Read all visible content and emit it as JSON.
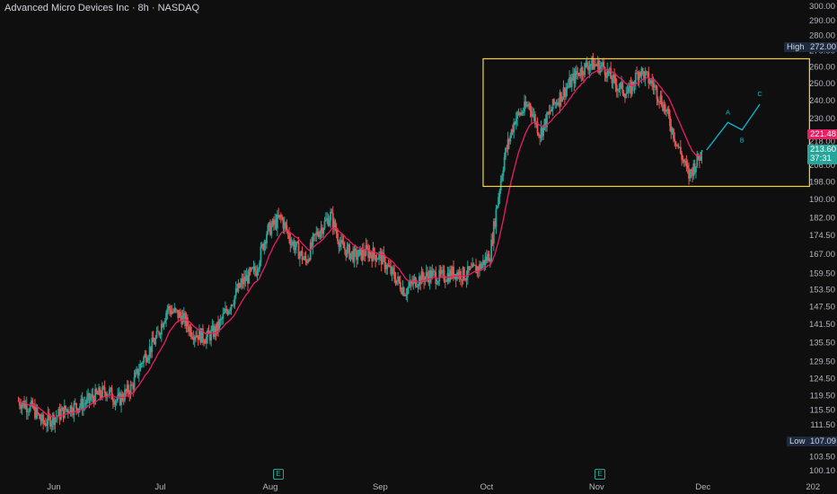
{
  "header": {
    "title": "Advanced Micro Devices Inc · 8h · NASDAQ"
  },
  "colors": {
    "up": "#26a69a",
    "down": "#ef5350",
    "ma": "#e91e63",
    "box": "#f5d142",
    "projection": "#00bcd4",
    "background": "#0f0f0f"
  },
  "axis": {
    "y_ticks": [
      "300.00",
      "290.00",
      "280.00",
      "270.00",
      "260.00",
      "250.00",
      "240.00",
      "230.00",
      "218.00",
      "206.00",
      "198.00",
      "190.00",
      "182.00",
      "174.50",
      "167.00",
      "159.50",
      "153.50",
      "147.50",
      "141.50",
      "135.50",
      "129.50",
      "124.50",
      "119.50",
      "115.50",
      "111.50",
      "107.50",
      "103.50",
      "100.10"
    ],
    "x_ticks": [
      "Jun",
      "Jul",
      "Aug",
      "Sep",
      "Oct",
      "Nov",
      "Dec",
      "202"
    ]
  },
  "price_tags": {
    "high_label": "High",
    "high_value": "272.00",
    "low_label": "Low",
    "low_value": "107.09",
    "ma_value": "221.48",
    "last_price": "213.60",
    "countdown": "37:31"
  },
  "annotations": {
    "wave_labels": [
      "A",
      "B",
      "C"
    ],
    "earnings_icon": "E"
  },
  "chart_data": {
    "type": "candlestick",
    "title": "Advanced Micro Devices Inc · 8h · NASDAQ",
    "xlabel": "",
    "ylabel": "",
    "ylim": [
      100.1,
      300
    ],
    "y_scale": "log",
    "x_ticks": [
      "Jun",
      "Jul",
      "Aug",
      "Sep",
      "Oct",
      "Nov",
      "Dec",
      "202"
    ],
    "price_path": [
      [
        "May 22",
        118
      ],
      [
        "May 26",
        116
      ],
      [
        "May 29",
        112
      ],
      [
        "Jun 2",
        114
      ],
      [
        "Jun 5",
        116
      ],
      [
        "Jun 9",
        117
      ],
      [
        "Jun 12",
        119
      ],
      [
        "Jun 16",
        121
      ],
      [
        "Jun 19",
        118
      ],
      [
        "Jun 23",
        122
      ],
      [
        "Jun 26",
        130
      ],
      [
        "Jun 30",
        137
      ],
      [
        "Jul 3",
        147
      ],
      [
        "Jul 7",
        144
      ],
      [
        "Jul 10",
        139
      ],
      [
        "Jul 14",
        137
      ],
      [
        "Jul 17",
        140
      ],
      [
        "Jul 21",
        149
      ],
      [
        "Jul 24",
        156
      ],
      [
        "Jul 28",
        161
      ],
      [
        "Jul 31",
        176
      ],
      [
        "Aug 4",
        182
      ],
      [
        "Aug 7",
        172
      ],
      [
        "Aug 11",
        164
      ],
      [
        "Aug 14",
        175
      ],
      [
        "Aug 18",
        183
      ],
      [
        "Aug 21",
        170
      ],
      [
        "Aug 25",
        166
      ],
      [
        "Aug 28",
        168
      ],
      [
        "Sep 1",
        166
      ],
      [
        "Sep 4",
        160
      ],
      [
        "Sep 8",
        153
      ],
      [
        "Sep 11",
        157
      ],
      [
        "Sep 15",
        159
      ],
      [
        "Sep 18",
        158
      ],
      [
        "Sep 22",
        160
      ],
      [
        "Sep 25",
        159
      ],
      [
        "Sep 29",
        162
      ],
      [
        "Oct 2",
        167
      ],
      [
        "Oct 6",
        210
      ],
      [
        "Oct 9",
        230
      ],
      [
        "Oct 13",
        238
      ],
      [
        "Oct 16",
        222
      ],
      [
        "Oct 20",
        238
      ],
      [
        "Oct 23",
        246
      ],
      [
        "Oct 27",
        257
      ],
      [
        "Oct 30",
        262
      ],
      [
        "Nov 3",
        260
      ],
      [
        "Nov 6",
        250
      ],
      [
        "Nov 10",
        244
      ],
      [
        "Nov 13",
        258
      ],
      [
        "Nov 17",
        249
      ],
      [
        "Nov 20",
        237
      ],
      [
        "Nov 24",
        215
      ],
      [
        "Nov 27",
        201
      ],
      [
        "Dec 1",
        213.6
      ]
    ],
    "high": 272.0,
    "low": 107.09,
    "ma_last": 221.48,
    "last_close": 213.6,
    "annotations": [
      {
        "type": "rectangle",
        "from_date": "Sep 30",
        "to_date": "Dec 31",
        "y_range": [
          196,
          265
        ]
      },
      {
        "type": "projection",
        "points": [
          [
            "Dec 2",
            213.6
          ],
          [
            "Dec 8",
            228
          ],
          [
            "Dec 12",
            224
          ],
          [
            "Dec 17",
            238
          ]
        ],
        "labels": [
          "A",
          "B",
          "C"
        ]
      }
    ]
  }
}
